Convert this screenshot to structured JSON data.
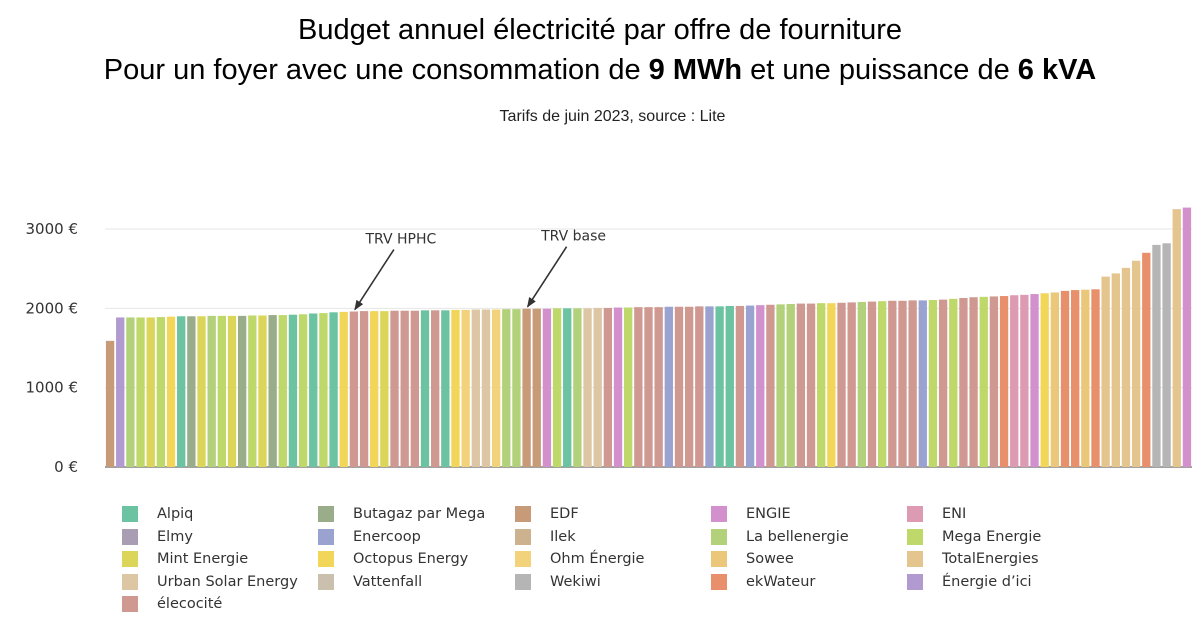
{
  "header": {
    "title_line1": "Budget annuel électricité par offre de fourniture",
    "title_line2_a": "Pour un foyer avec une consommation de ",
    "title_line2_b": "9 MWh",
    "title_line2_c": " et une puissance de ",
    "title_line2_d": "6 kVA",
    "subtitle": "Tarifs de juin 2023, source : Lite"
  },
  "chart_data": {
    "type": "bar",
    "title": "Budget annuel électricité par offre de fourniture",
    "ylim": [
      0,
      3300
    ],
    "yticks": [
      {
        "value": 0,
        "label": "0 €"
      },
      {
        "value": 1000,
        "label": "1000 €"
      },
      {
        "value": 2000,
        "label": "2000 €"
      },
      {
        "value": 3000,
        "label": "3000 €"
      }
    ],
    "grid": true,
    "legend_position": "bottom",
    "annotations": [
      {
        "text": "TRV HPHC",
        "bar_index": 24
      },
      {
        "text": "TRV base",
        "bar_index": 41
      }
    ],
    "suppliers": [
      {
        "name": "Alpiq",
        "color": "#6cc3a2"
      },
      {
        "name": "Butagaz par Mega",
        "color": "#9aad8b"
      },
      {
        "name": "EDF",
        "color": "#c79a78"
      },
      {
        "name": "ENGIE",
        "color": "#d291cd"
      },
      {
        "name": "ENI",
        "color": "#dc9bb2"
      },
      {
        "name": "Elmy",
        "color": "#a89db3"
      },
      {
        "name": "Enercoop",
        "color": "#9aa3d0"
      },
      {
        "name": "Ilek",
        "color": "#ccb28e"
      },
      {
        "name": "La bellenergie",
        "color": "#b2d17a"
      },
      {
        "name": "Mega Energie",
        "color": "#bed869"
      },
      {
        "name": "Mint Energie",
        "color": "#dbd65a"
      },
      {
        "name": "Octopus Energy",
        "color": "#f2d65a"
      },
      {
        "name": "Ohm Énergie",
        "color": "#f2d27a"
      },
      {
        "name": "Sowee",
        "color": "#ebc879"
      },
      {
        "name": "TotalEnergies",
        "color": "#e3c58d"
      },
      {
        "name": "Urban Solar Energy",
        "color": "#dcc6a4"
      },
      {
        "name": "Vattenfall",
        "color": "#cbbfae"
      },
      {
        "name": "Wekiwi",
        "color": "#b5b5b5"
      },
      {
        "name": "ekWateur",
        "color": "#e8906b"
      },
      {
        "name": "Énergie d’ici",
        "color": "#b19ad0"
      },
      {
        "name": "élecocité",
        "color": "#cf9991"
      }
    ],
    "bars": [
      {
        "supplier": "EDF",
        "value": 1590
      },
      {
        "supplier": "Énergie d’ici",
        "value": 1885
      },
      {
        "supplier": "La bellenergie",
        "value": 1885
      },
      {
        "supplier": "Mega Energie",
        "value": 1885
      },
      {
        "supplier": "Mint Energie",
        "value": 1885
      },
      {
        "supplier": "Mega Energie",
        "value": 1890
      },
      {
        "supplier": "Octopus Energy",
        "value": 1895
      },
      {
        "supplier": "Alpiq",
        "value": 1900
      },
      {
        "supplier": "Butagaz par Mega",
        "value": 1900
      },
      {
        "supplier": "Mint Energie",
        "value": 1900
      },
      {
        "supplier": "La bellenergie",
        "value": 1905
      },
      {
        "supplier": "Mega Energie",
        "value": 1905
      },
      {
        "supplier": "Mint Energie",
        "value": 1905
      },
      {
        "supplier": "Butagaz par Mega",
        "value": 1905
      },
      {
        "supplier": "Mega Energie",
        "value": 1910
      },
      {
        "supplier": "Mint Energie",
        "value": 1910
      },
      {
        "supplier": "Butagaz par Mega",
        "value": 1915
      },
      {
        "supplier": "Mega Energie",
        "value": 1915
      },
      {
        "supplier": "Alpiq",
        "value": 1920
      },
      {
        "supplier": "Mega Energie",
        "value": 1925
      },
      {
        "supplier": "Alpiq",
        "value": 1935
      },
      {
        "supplier": "Mega Energie",
        "value": 1940
      },
      {
        "supplier": "Alpiq",
        "value": 1950
      },
      {
        "supplier": "Octopus Energy",
        "value": 1955
      },
      {
        "supplier": "élecocité",
        "value": 1960
      },
      {
        "supplier": "élecocité",
        "value": 1965
      },
      {
        "supplier": "Octopus Energy",
        "value": 1965
      },
      {
        "supplier": "Mint Energie",
        "value": 1965
      },
      {
        "supplier": "élecocité",
        "value": 1970
      },
      {
        "supplier": "élecocité",
        "value": 1970
      },
      {
        "supplier": "élecocité",
        "value": 1970
      },
      {
        "supplier": "Alpiq",
        "value": 1975
      },
      {
        "supplier": "élecocité",
        "value": 1975
      },
      {
        "supplier": "Alpiq",
        "value": 1975
      },
      {
        "supplier": "Octopus Energy",
        "value": 1980
      },
      {
        "supplier": "Ohm Énergie",
        "value": 1980
      },
      {
        "supplier": "Urban Solar Energy",
        "value": 1985
      },
      {
        "supplier": "Urban Solar Energy",
        "value": 1985
      },
      {
        "supplier": "Ohm Énergie",
        "value": 1985
      },
      {
        "supplier": "La bellenergie",
        "value": 1990
      },
      {
        "supplier": "La bellenergie",
        "value": 1990
      },
      {
        "supplier": "EDF",
        "value": 1995
      },
      {
        "supplier": "EDF",
        "value": 1995
      },
      {
        "supplier": "ENGIE",
        "value": 1995
      },
      {
        "supplier": "Mega Energie",
        "value": 2000
      },
      {
        "supplier": "Alpiq",
        "value": 2000
      },
      {
        "supplier": "La bellenergie",
        "value": 2000
      },
      {
        "supplier": "Urban Solar Energy",
        "value": 2000
      },
      {
        "supplier": "Urban Solar Energy",
        "value": 2005
      },
      {
        "supplier": "élecocité",
        "value": 2005
      },
      {
        "supplier": "ENGIE",
        "value": 2010
      },
      {
        "supplier": "Mega Energie",
        "value": 2010
      },
      {
        "supplier": "élecocité",
        "value": 2015
      },
      {
        "supplier": "élecocité",
        "value": 2015
      },
      {
        "supplier": "élecocité",
        "value": 2015
      },
      {
        "supplier": "Enercoop",
        "value": 2020
      },
      {
        "supplier": "élecocité",
        "value": 2020
      },
      {
        "supplier": "élecocité",
        "value": 2020
      },
      {
        "supplier": "élecocité",
        "value": 2025
      },
      {
        "supplier": "Enercoop",
        "value": 2025
      },
      {
        "supplier": "Alpiq",
        "value": 2025
      },
      {
        "supplier": "Alpiq",
        "value": 2030
      },
      {
        "supplier": "élecocité",
        "value": 2030
      },
      {
        "supplier": "Enercoop",
        "value": 2035
      },
      {
        "supplier": "ENGIE",
        "value": 2040
      },
      {
        "supplier": "élecocité",
        "value": 2045
      },
      {
        "supplier": "La bellenergie",
        "value": 2050
      },
      {
        "supplier": "La bellenergie",
        "value": 2055
      },
      {
        "supplier": "élecocité",
        "value": 2060
      },
      {
        "supplier": "élecocité",
        "value": 2060
      },
      {
        "supplier": "Mega Energie",
        "value": 2065
      },
      {
        "supplier": "Octopus Energy",
        "value": 2065
      },
      {
        "supplier": "élecocité",
        "value": 2070
      },
      {
        "supplier": "élecocité",
        "value": 2075
      },
      {
        "supplier": "La bellenergie",
        "value": 2080
      },
      {
        "supplier": "élecocité",
        "value": 2085
      },
      {
        "supplier": "Mega Energie",
        "value": 2090
      },
      {
        "supplier": "élecocité",
        "value": 2095
      },
      {
        "supplier": "élecocité",
        "value": 2095
      },
      {
        "supplier": "élecocité",
        "value": 2100
      },
      {
        "supplier": "Enercoop",
        "value": 2100
      },
      {
        "supplier": "Mega Energie",
        "value": 2105
      },
      {
        "supplier": "élecocité",
        "value": 2110
      },
      {
        "supplier": "Mega Energie",
        "value": 2120
      },
      {
        "supplier": "élecocité",
        "value": 2130
      },
      {
        "supplier": "élecocité",
        "value": 2140
      },
      {
        "supplier": "Mega Energie",
        "value": 2145
      },
      {
        "supplier": "élecocité",
        "value": 2150
      },
      {
        "supplier": "ekWateur",
        "value": 2155
      },
      {
        "supplier": "ENI",
        "value": 2165
      },
      {
        "supplier": "ENI",
        "value": 2170
      },
      {
        "supplier": "ENGIE",
        "value": 2180
      },
      {
        "supplier": "Octopus Energy",
        "value": 2190
      },
      {
        "supplier": "Sowee",
        "value": 2200
      },
      {
        "supplier": "ekWateur",
        "value": 2220
      },
      {
        "supplier": "ekWateur",
        "value": 2230
      },
      {
        "supplier": "Sowee",
        "value": 2235
      },
      {
        "supplier": "ekWateur",
        "value": 2240
      },
      {
        "supplier": "TotalEnergies",
        "value": 2400
      },
      {
        "supplier": "TotalEnergies",
        "value": 2440
      },
      {
        "supplier": "TotalEnergies",
        "value": 2510
      },
      {
        "supplier": "TotalEnergies",
        "value": 2600
      },
      {
        "supplier": "ekWateur",
        "value": 2700
      },
      {
        "supplier": "Wekiwi",
        "value": 2800
      },
      {
        "supplier": "Wekiwi",
        "value": 2820
      },
      {
        "supplier": "TotalEnergies",
        "value": 3250
      },
      {
        "supplier": "ENGIE",
        "value": 3270
      }
    ]
  }
}
